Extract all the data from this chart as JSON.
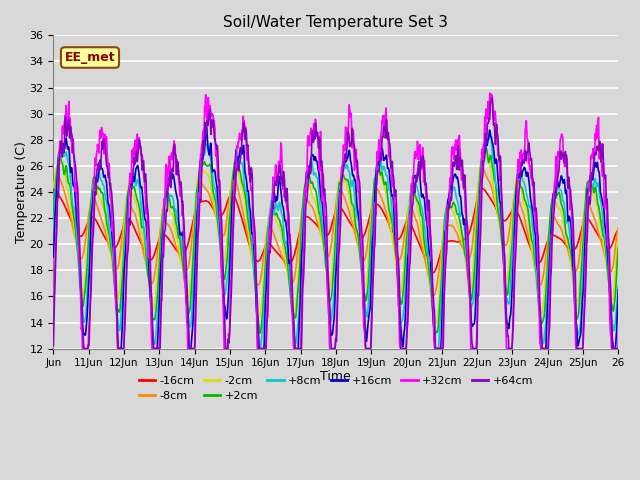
{
  "title": "Soil/Water Temperature Set 3",
  "xlabel": "Time",
  "ylabel": "Temperature (C)",
  "ylim": [
    12,
    36
  ],
  "xlim": [
    0,
    384
  ],
  "background_color": "#d8d8d8",
  "plot_bg_color": "#d8d8d8",
  "grid_color": "white",
  "annotation_text": "EE_met",
  "annotation_bg": "#ffff99",
  "annotation_border": "#8b4513",
  "series": [
    {
      "label": "-16cm",
      "color": "#ff0000"
    },
    {
      "label": "-8cm",
      "color": "#ff8800"
    },
    {
      "label": "-2cm",
      "color": "#dddd00"
    },
    {
      "label": "+2cm",
      "color": "#00bb00"
    },
    {
      "label": "+8cm",
      "color": "#00cccc"
    },
    {
      "label": "+16cm",
      "color": "#0000cc"
    },
    {
      "label": "+32cm",
      "color": "#ff00ff"
    },
    {
      "label": "+64cm",
      "color": "#8800bb"
    }
  ],
  "tick_labels": [
    "Jun",
    "11Jun",
    "12Jun",
    "13Jun",
    "14Jun",
    "15Jun",
    "16Jun",
    "17Jun",
    "18Jun",
    "19Jun",
    "20Jun",
    "21Jun",
    "22Jun",
    "23Jun",
    "24Jun",
    "25Jun",
    "26"
  ],
  "tick_positions": [
    0,
    24,
    48,
    72,
    96,
    120,
    144,
    168,
    192,
    216,
    240,
    264,
    288,
    312,
    336,
    360,
    384
  ],
  "yticks": [
    12,
    14,
    16,
    18,
    20,
    22,
    24,
    26,
    28,
    30,
    32,
    34,
    36
  ]
}
